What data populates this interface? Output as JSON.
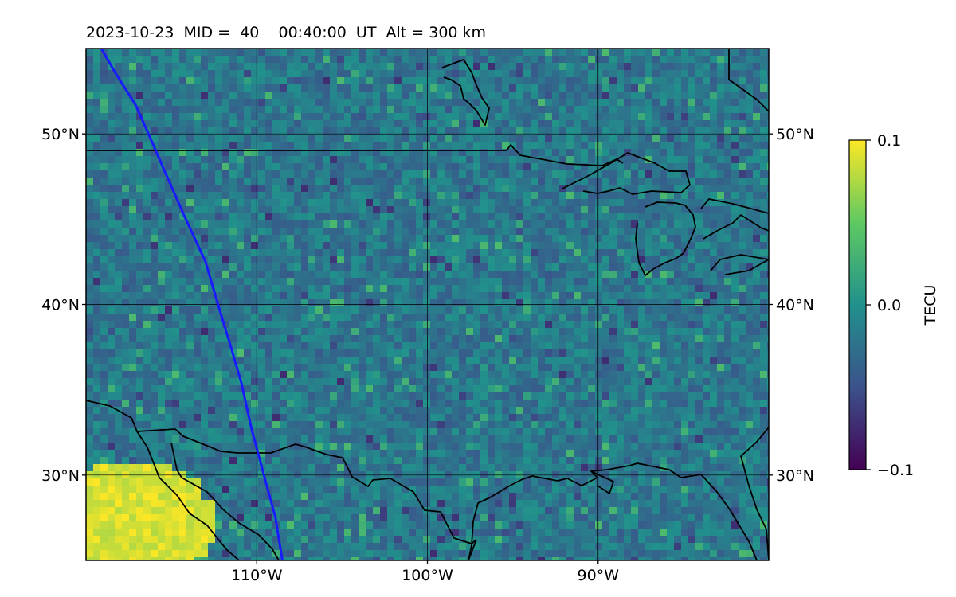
{
  "title": "2023-10-23  MID =  40    00:40:00  UT  Alt = 300 km",
  "map": {
    "projection": "lat-lon",
    "lon_range": [
      -120,
      -80
    ],
    "lat_range": [
      25,
      55
    ],
    "lat_ticks": [
      {
        "value": 50,
        "label": "50°N"
      },
      {
        "value": 40,
        "label": "40°N"
      },
      {
        "value": 30,
        "label": "30°N"
      }
    ],
    "lon_ticks": [
      {
        "value": -110,
        "label": "110°W"
      },
      {
        "value": -100,
        "label": "100°W"
      },
      {
        "value": -90,
        "label": "90°W"
      }
    ],
    "grid": true,
    "field": "TEC perturbation, mostly near 0 to slightly negative; strong positive anomaly near 27-30°N, 116-120°W",
    "track_color": "#1a1aff",
    "track": [
      [
        -119.1,
        55.0
      ],
      [
        -118.3,
        53.6
      ],
      [
        -117.1,
        51.7
      ],
      [
        -116.3,
        49.9
      ],
      [
        -115.3,
        47.6
      ],
      [
        -114.2,
        45.1
      ],
      [
        -113.0,
        42.5
      ],
      [
        -112.3,
        40.1
      ],
      [
        -111.6,
        37.8
      ],
      [
        -110.9,
        35.4
      ],
      [
        -110.3,
        32.7
      ],
      [
        -109.5,
        29.7
      ],
      [
        -108.9,
        27.5
      ],
      [
        -108.5,
        25.0
      ]
    ]
  },
  "colorbar": {
    "label": "TECU",
    "min": -0.1,
    "max": 0.1,
    "ticks": [
      {
        "value": 0.1,
        "label": "0.1"
      },
      {
        "value": 0.0,
        "label": "0.0"
      },
      {
        "value": -0.1,
        "label": "−0.1"
      }
    ],
    "colormap": "viridis",
    "colors": [
      "#440154",
      "#3b528b",
      "#21918c",
      "#5ec962",
      "#fde725"
    ]
  },
  "colors": {
    "border_line": "#000000",
    "grid_line": "#000000",
    "anomaly_yellow": "#f4e120"
  }
}
